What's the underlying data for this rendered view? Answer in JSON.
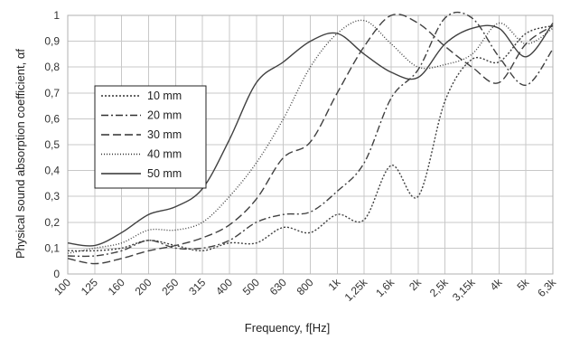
{
  "chart_data": {
    "type": "line",
    "xlabel": "Frequency, f[Hz]",
    "ylabel": "Physical sound absorption coefficient, αf",
    "x": [
      "100",
      "125",
      "160",
      "200",
      "250",
      "315",
      "400",
      "500",
      "630",
      "800",
      "1k",
      "1,25k",
      "1,6k",
      "2k",
      "2,5k",
      "3,15k",
      "4k",
      "5k",
      "6,3k"
    ],
    "ylim": [
      0,
      1
    ],
    "yticks": [
      "0",
      "0,1",
      "0,2",
      "0,3",
      "0,4",
      "0,5",
      "0,6",
      "0,7",
      "0,8",
      "0,9",
      "1"
    ],
    "grid": true,
    "legend_position": "left",
    "series": [
      {
        "name": "10 mm",
        "dash": "2,2",
        "values": [
          0.09,
          0.09,
          0.1,
          0.13,
          0.11,
          0.09,
          0.12,
          0.12,
          0.18,
          0.16,
          0.23,
          0.21,
          0.42,
          0.3,
          0.67,
          0.83,
          0.82,
          0.93,
          0.96
        ]
      },
      {
        "name": "20 mm",
        "dash": "8,3,2,3",
        "values": [
          0.07,
          0.07,
          0.09,
          0.13,
          0.1,
          0.1,
          0.13,
          0.2,
          0.23,
          0.24,
          0.32,
          0.43,
          0.68,
          0.79,
          0.99,
          0.99,
          0.84,
          0.73,
          0.87
        ]
      },
      {
        "name": "30 mm",
        "dash": "9,4",
        "values": [
          0.06,
          0.04,
          0.06,
          0.09,
          0.11,
          0.14,
          0.19,
          0.29,
          0.45,
          0.51,
          0.7,
          0.88,
          1.0,
          0.97,
          0.88,
          0.8,
          0.74,
          0.89,
          0.96
        ]
      },
      {
        "name": "40 mm",
        "dash": "1,2",
        "values": [
          0.08,
          0.1,
          0.12,
          0.17,
          0.17,
          0.2,
          0.3,
          0.43,
          0.6,
          0.8,
          0.93,
          0.98,
          0.89,
          0.8,
          0.81,
          0.85,
          0.97,
          0.89,
          0.95
        ]
      },
      {
        "name": "50 mm",
        "dash": "",
        "values": [
          0.12,
          0.11,
          0.16,
          0.23,
          0.26,
          0.33,
          0.52,
          0.74,
          0.82,
          0.9,
          0.93,
          0.85,
          0.78,
          0.76,
          0.89,
          0.95,
          0.95,
          0.84,
          0.97
        ]
      }
    ]
  }
}
